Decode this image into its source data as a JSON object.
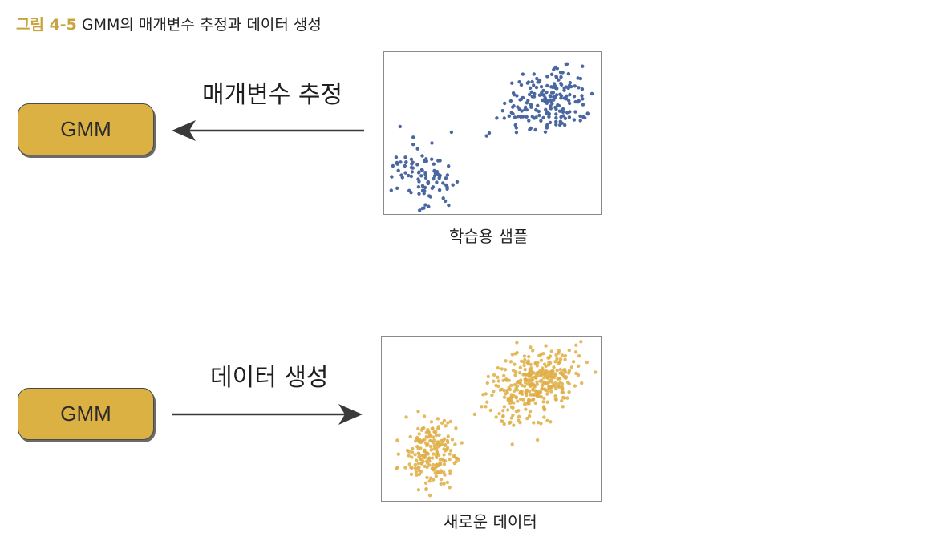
{
  "figure": {
    "number": "그림 4-5",
    "title": "GMM의 매개변수 추정과 데이터 생성"
  },
  "top": {
    "model_label": "GMM",
    "arrow_label": "매개변수 추정",
    "plot_caption": "학습용 샘플",
    "point_color": "#4a67a0"
  },
  "bottom": {
    "model_label": "GMM",
    "arrow_label": "데이터 생성",
    "plot_caption": "새로운 데이터",
    "point_color": "#dfae45"
  },
  "colors": {
    "box_fill": "#dcb144",
    "caption_accent": "#c8a33e",
    "arrow": "#3a3a3a"
  }
}
